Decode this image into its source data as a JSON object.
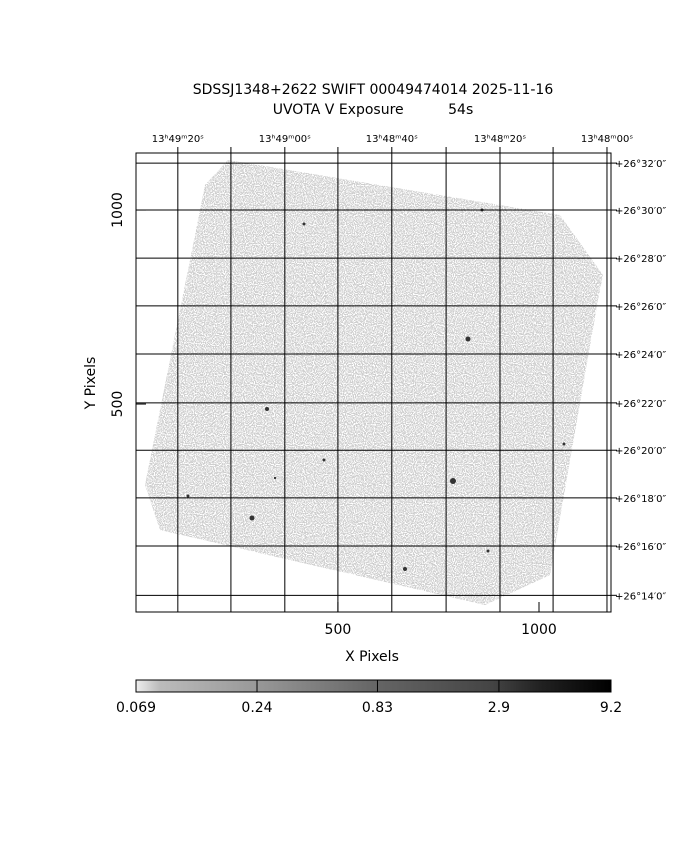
{
  "chart_data": {
    "type": "image",
    "title": "SDSSJ1348+2622 SWIFT 00049474014 2025-11-16",
    "subtitle": "UVOTA V Exposure          54s",
    "x_label": "X Pixels",
    "y_label": "Y Pixels",
    "xlim": [
      -2,
      1179
    ],
    "ylim": [
      -36,
      1147
    ],
    "xticks": [
      500,
      1000
    ],
    "yticks": [
      500,
      1000
    ],
    "grid": true,
    "ra_ticks": [
      {
        "value": 102,
        "label": "13ʰ49ᵐ20ˢ"
      },
      {
        "value": 234,
        "label": null
      },
      {
        "value": 368,
        "label": "13ʰ49ᵐ00ˢ"
      },
      {
        "value": 500,
        "label": null
      },
      {
        "value": 634,
        "label": "13ʰ48ᵐ40ˢ"
      },
      {
        "value": 769,
        "label": null
      },
      {
        "value": 903,
        "label": "13ʰ48ᵐ20ˢ"
      },
      {
        "value": 1035,
        "label": null
      },
      {
        "value": 1169,
        "label": "13ʰ48ᵐ00ˢ"
      }
    ],
    "dec_ticks": [
      {
        "value": 1121,
        "label": "+26°32′0″"
      },
      {
        "value": 1000,
        "label": "+26°30′0″"
      },
      {
        "value": 876,
        "label": "+26°28′0″"
      },
      {
        "value": 753,
        "label": "+26°26′0″"
      },
      {
        "value": 629,
        "label": "+26°24′0″"
      },
      {
        "value": 503,
        "label": "+26°22′0″"
      },
      {
        "value": 381,
        "label": "+26°20′0″"
      },
      {
        "value": 258,
        "label": "+26°18′0″"
      },
      {
        "value": 134,
        "label": "+26°16′0″"
      },
      {
        "value": 7,
        "label": "+26°14′0″"
      }
    ],
    "colorbar": {
      "scale": "log",
      "lim": [
        0.069,
        9.2
      ],
      "ticks": [
        0.069,
        0.24,
        0.83,
        2.9,
        9.2
      ]
    }
  }
}
